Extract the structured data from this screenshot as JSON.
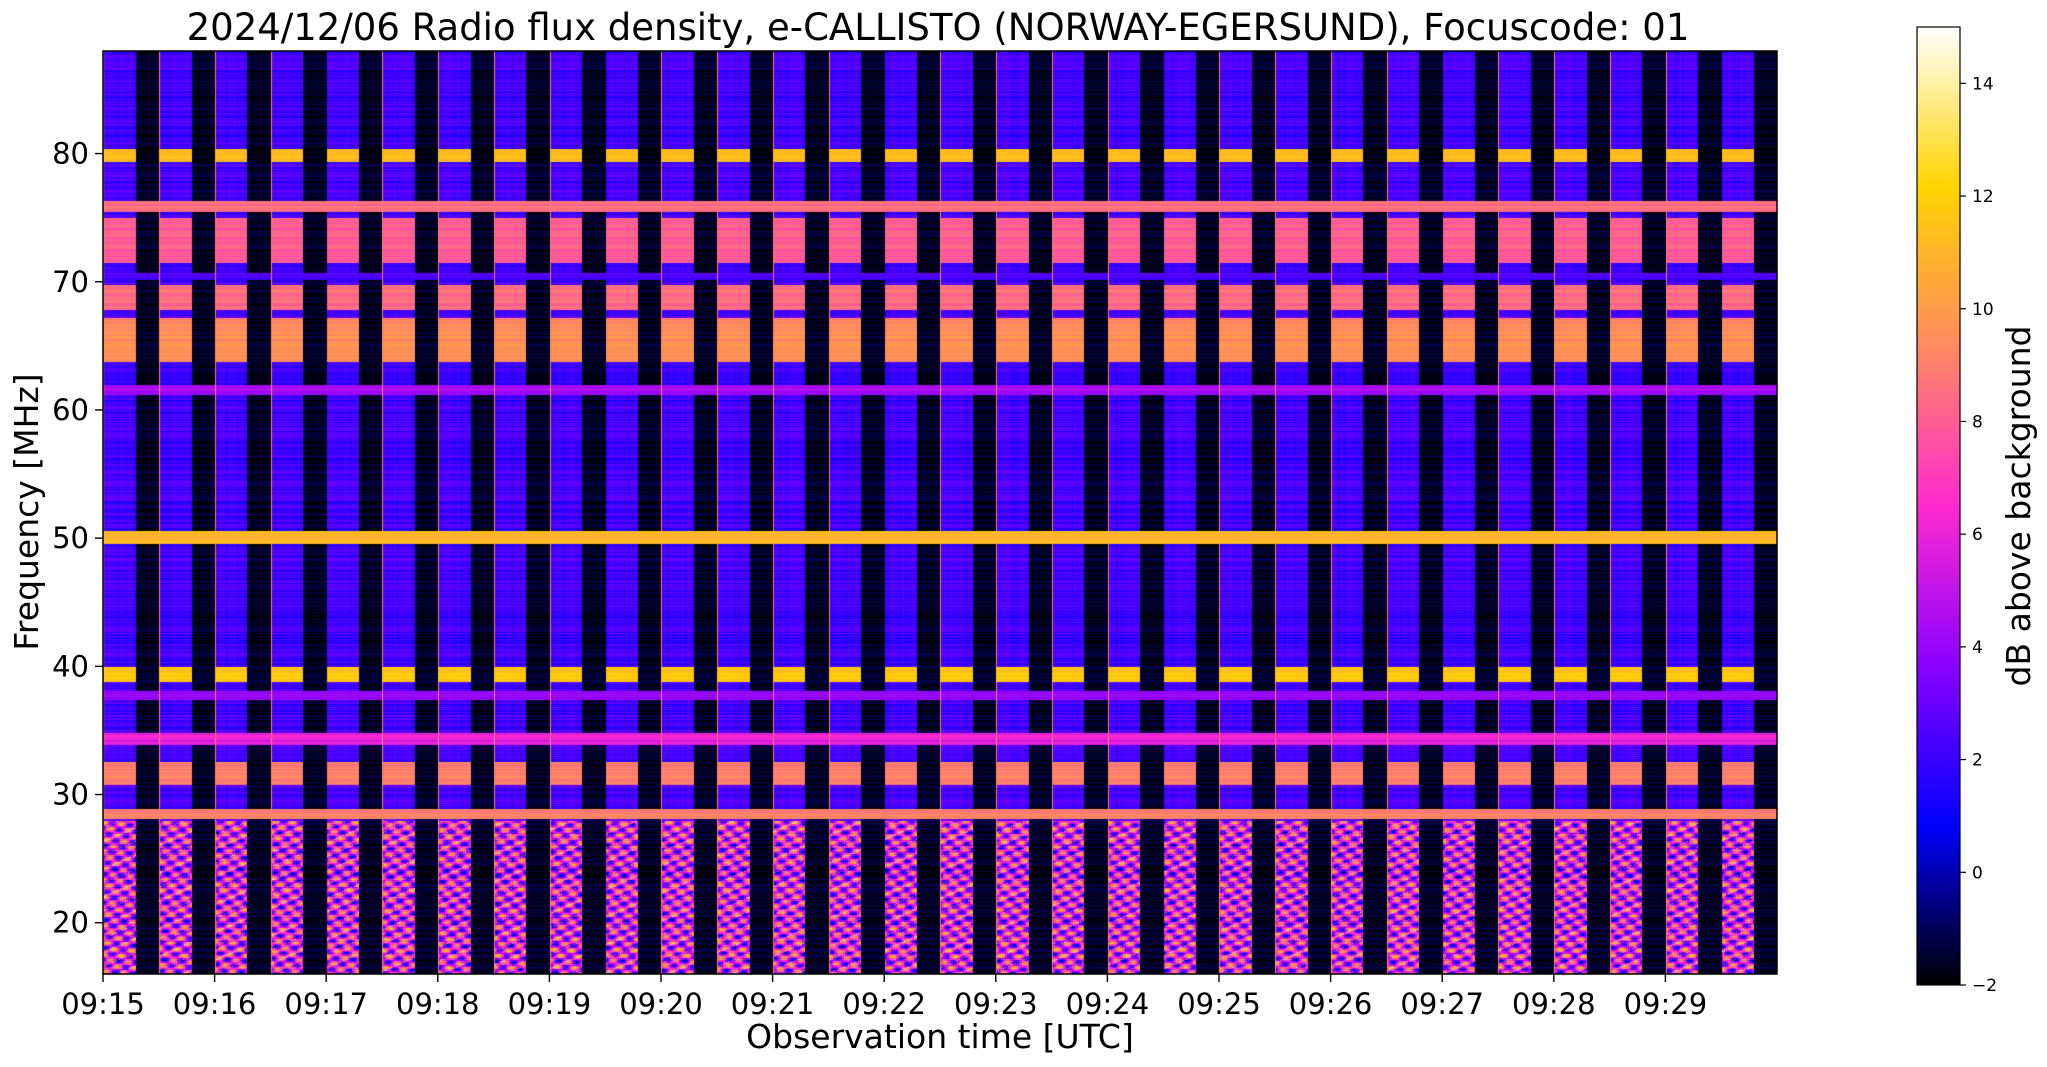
{
  "chart_data": {
    "type": "heatmap",
    "title": "2024/12/06  Radio flux density, e-CALLISTO (NORWAY-EGERSUND), Focuscode: 01",
    "xlabel": "Observation time [UTC]",
    "ylabel": "Frequency [MHz]",
    "xlim": [
      "09:15:00",
      "09:30:00"
    ],
    "ylim": [
      16,
      88
    ],
    "x_ticks": [
      "09:15",
      "09:16",
      "09:17",
      "09:18",
      "09:19",
      "09:20",
      "09:21",
      "09:22",
      "09:23",
      "09:24",
      "09:25",
      "09:26",
      "09:27",
      "09:28",
      "09:29"
    ],
    "y_ticks": [
      20,
      30,
      40,
      50,
      60,
      70,
      80
    ],
    "colorbar": {
      "label": "dB above background",
      "range": [
        -2,
        15
      ],
      "ticks": [
        -2,
        0,
        2,
        4,
        6,
        8,
        10,
        12,
        14
      ],
      "colormap": "gnuplot2",
      "stops": [
        "#000000",
        "#0000ff",
        "#8a00ff",
        "#ff2ad0",
        "#ff8a60",
        "#ffd400",
        "#ffffff"
      ]
    },
    "pattern": {
      "on_off_periods": 30,
      "off_fraction": 0.42,
      "on_level_db": 2.2,
      "off_level_db": -1.6
    },
    "bands": [
      {
        "range": [
          79.4,
          80.4
        ],
        "level_db": 11.5,
        "always_on": false
      },
      {
        "range": [
          75.5,
          76.3
        ],
        "level_db": 8.5,
        "always_on": true
      },
      {
        "range": [
          71.5,
          75.0
        ],
        "level_db": 8.0,
        "always_on": false
      },
      {
        "range": [
          70.2,
          70.7
        ],
        "level_db": 2.5,
        "always_on": true
      },
      {
        "range": [
          67.8,
          69.8
        ],
        "level_db": 8.5,
        "always_on": false
      },
      {
        "range": [
          63.8,
          67.2
        ],
        "level_db": 9.5,
        "always_on": false
      },
      {
        "range": [
          61.2,
          62.0
        ],
        "level_db": 4.5,
        "always_on": true
      },
      {
        "range": [
          49.6,
          50.6
        ],
        "level_db": 11.0,
        "always_on": true
      },
      {
        "range": [
          38.8,
          40.0
        ],
        "level_db": 11.5,
        "always_on": false
      },
      {
        "range": [
          37.4,
          38.1
        ],
        "level_db": 4.0,
        "always_on": true
      },
      {
        "range": [
          33.9,
          34.8
        ],
        "level_db": 6.0,
        "always_on": true
      },
      {
        "range": [
          30.8,
          32.6
        ],
        "level_db": 9.0,
        "always_on": false
      },
      {
        "range": [
          28.1,
          28.9
        ],
        "level_db": 9.0,
        "always_on": true
      },
      {
        "range": [
          16.0,
          28.0
        ],
        "level_db": 5.5,
        "always_on": false,
        "noisy": true
      }
    ]
  }
}
